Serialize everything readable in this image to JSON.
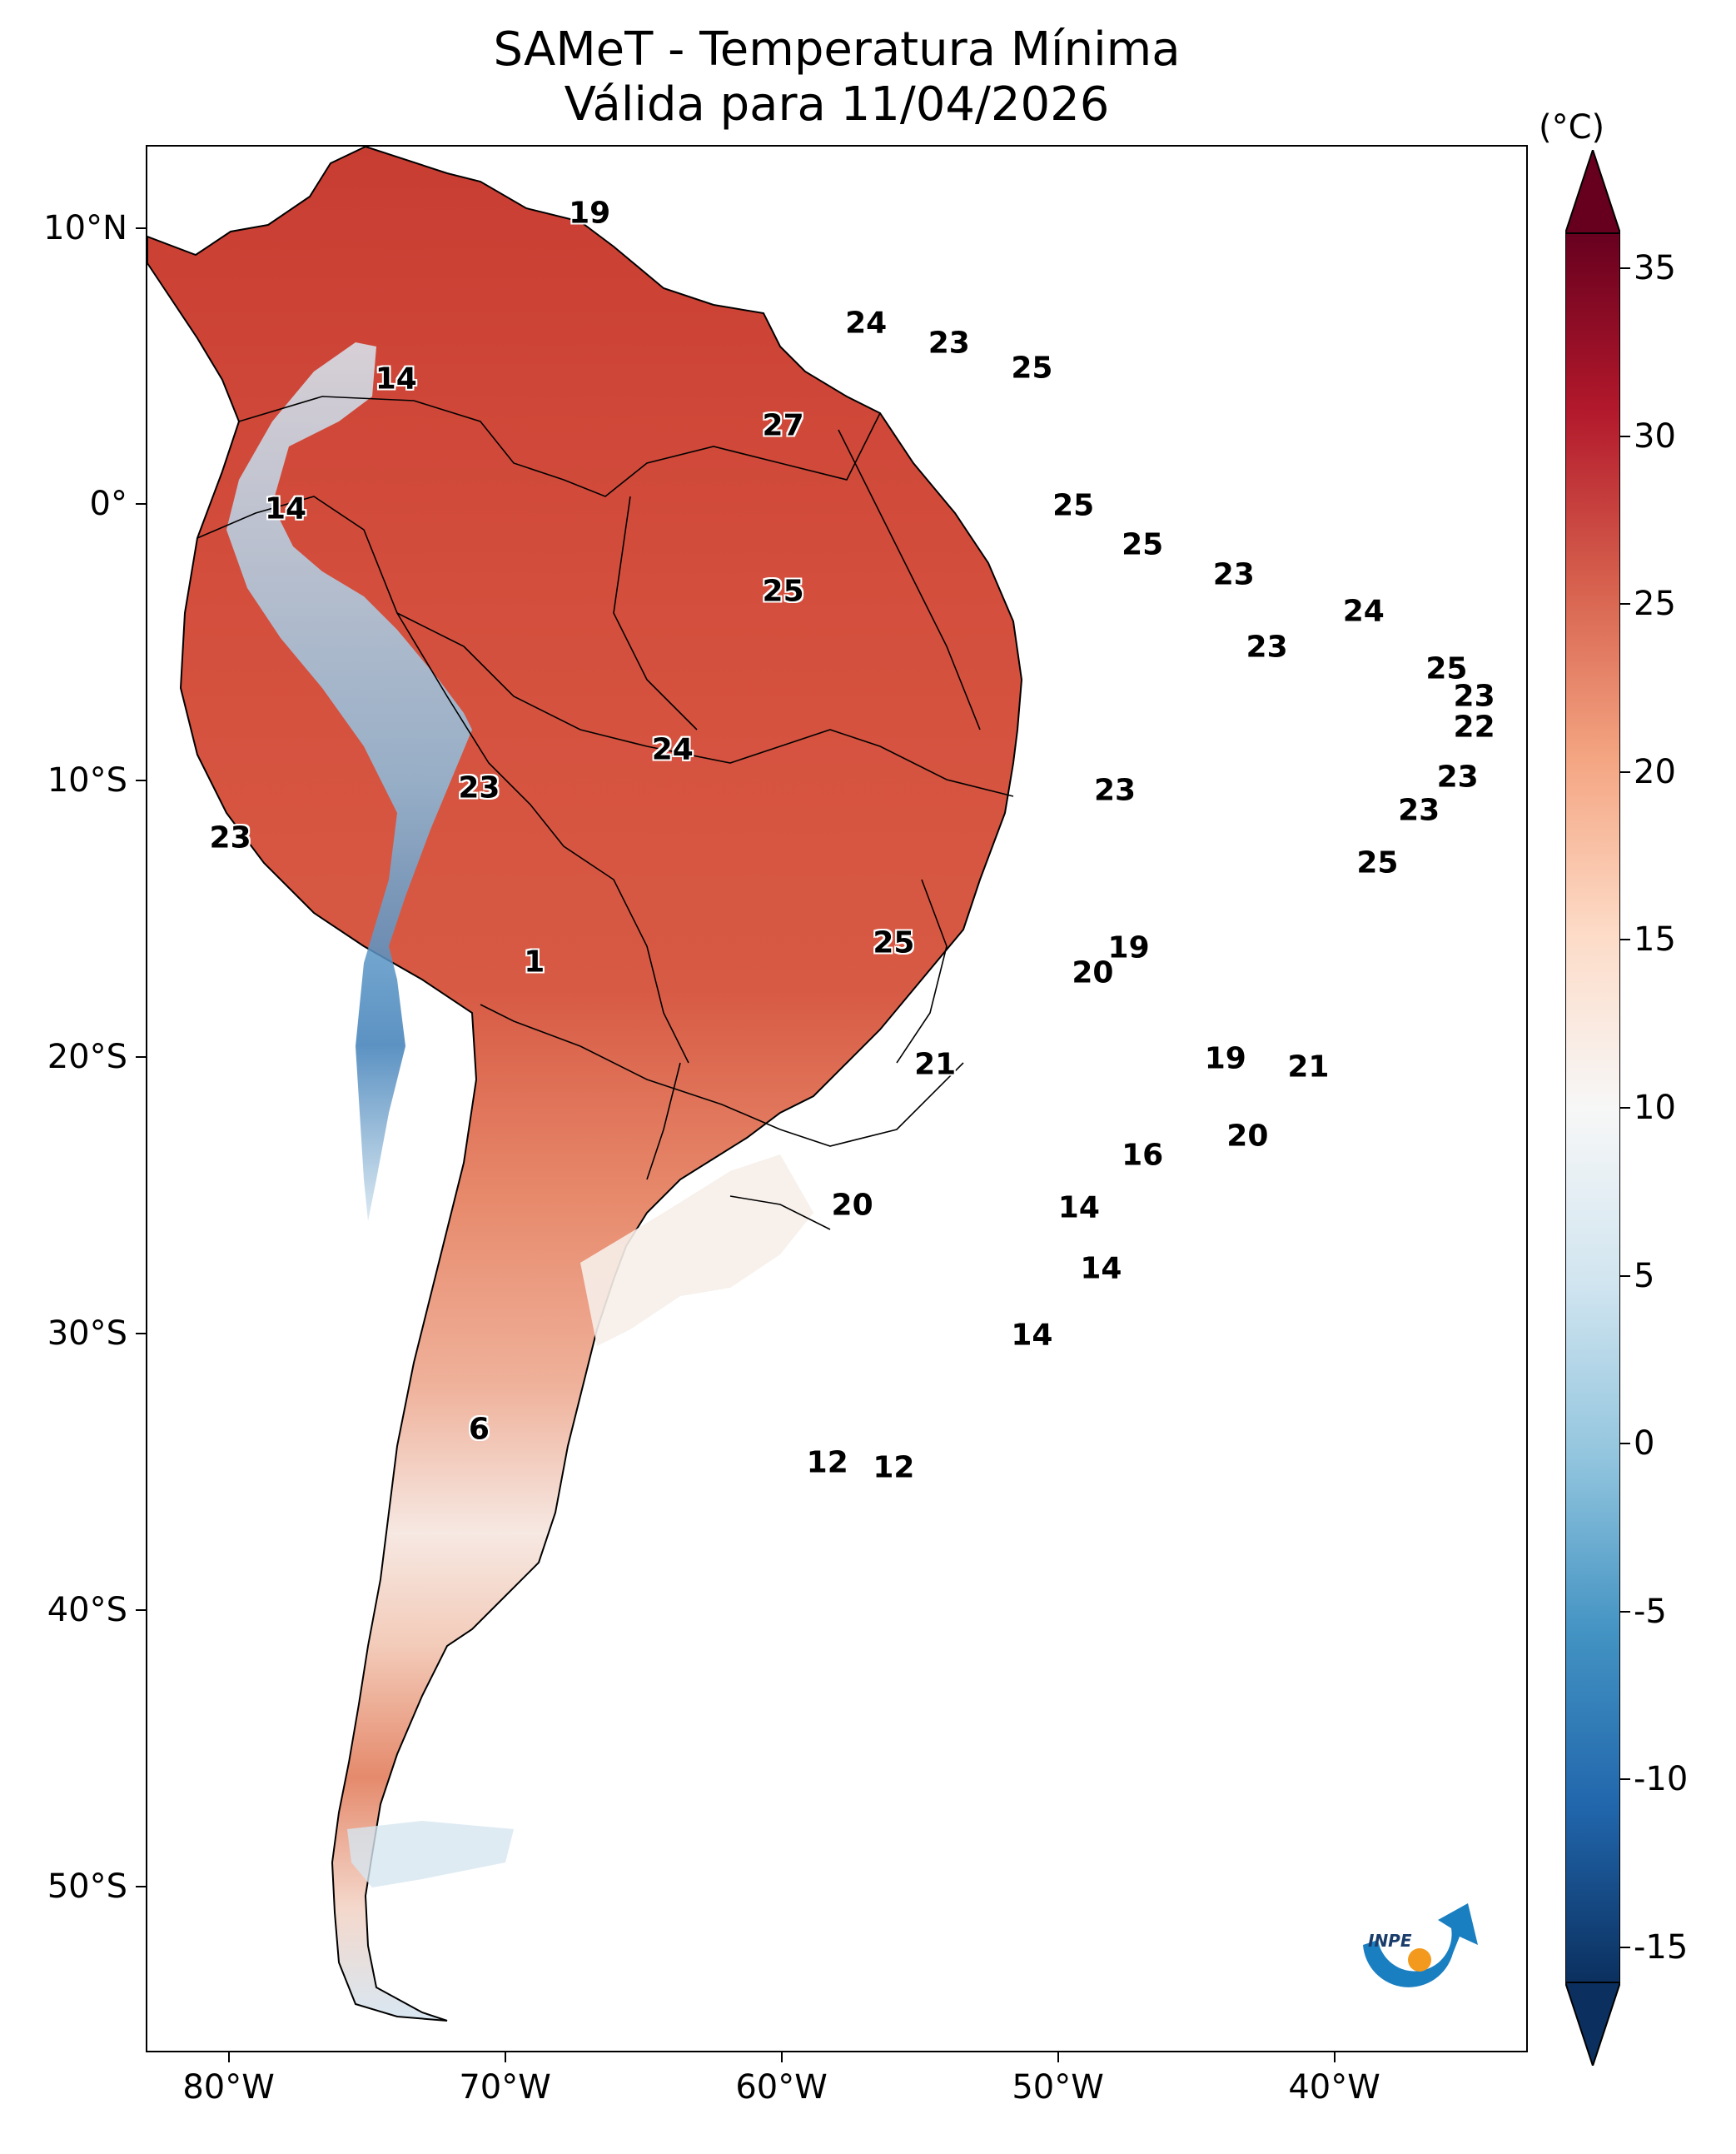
{
  "title": {
    "line1": "SAMeT - Temperatura Mínima",
    "line2": "Válida para 11/04/2026"
  },
  "map": {
    "lat_ticks": [
      "10°N",
      "0°",
      "10°S",
      "20°S",
      "30°S",
      "40°S",
      "50°S"
    ],
    "lon_ticks": [
      "80°W",
      "70°W",
      "60°W",
      "50°W",
      "40°W"
    ],
    "lat_range": [
      -56,
      13
    ],
    "lon_range": [
      -83,
      -33
    ],
    "labels": [
      {
        "lat": 10.6,
        "lon": -67,
        "value": "19"
      },
      {
        "lat": 6.6,
        "lon": -57,
        "value": "24"
      },
      {
        "lat": 5.9,
        "lon": -54,
        "value": "23"
      },
      {
        "lat": 5.0,
        "lon": -51,
        "value": "25"
      },
      {
        "lat": 4.6,
        "lon": -74,
        "value": "14"
      },
      {
        "lat": 2.9,
        "lon": -60,
        "value": "27"
      },
      {
        "lat": -0.1,
        "lon": -78,
        "value": "14"
      },
      {
        "lat": 0.0,
        "lon": -49.5,
        "value": "25"
      },
      {
        "lat": -1.4,
        "lon": -47,
        "value": "25"
      },
      {
        "lat": -2.5,
        "lon": -43.7,
        "value": "23"
      },
      {
        "lat": -3.1,
        "lon": -60,
        "value": "25"
      },
      {
        "lat": -3.8,
        "lon": -39,
        "value": "24"
      },
      {
        "lat": -5.1,
        "lon": -42.5,
        "value": "23"
      },
      {
        "lat": -5.9,
        "lon": -36,
        "value": "25"
      },
      {
        "lat": -6.9,
        "lon": -35,
        "value": "23"
      },
      {
        "lat": -8.0,
        "lon": -35,
        "value": "22"
      },
      {
        "lat": -8.8,
        "lon": -64,
        "value": "24"
      },
      {
        "lat": -9.8,
        "lon": -35.6,
        "value": "23"
      },
      {
        "lat": -10.2,
        "lon": -71,
        "value": "23"
      },
      {
        "lat": -10.3,
        "lon": -48,
        "value": "23"
      },
      {
        "lat": -11.0,
        "lon": -37,
        "value": "23"
      },
      {
        "lat": -12.0,
        "lon": -80,
        "value": "23"
      },
      {
        "lat": -12.9,
        "lon": -38.5,
        "value": "25"
      },
      {
        "lat": -15.8,
        "lon": -56,
        "value": "25"
      },
      {
        "lat": -16.0,
        "lon": -47.5,
        "value": "19"
      },
      {
        "lat": -16.5,
        "lon": -69,
        "value": "1"
      },
      {
        "lat": -16.9,
        "lon": -48.8,
        "value": "20"
      },
      {
        "lat": -20.0,
        "lon": -44,
        "value": "19"
      },
      {
        "lat": -20.2,
        "lon": -54.5,
        "value": "21"
      },
      {
        "lat": -20.3,
        "lon": -41,
        "value": "21"
      },
      {
        "lat": -22.8,
        "lon": -43.2,
        "value": "20"
      },
      {
        "lat": -23.5,
        "lon": -47,
        "value": "16"
      },
      {
        "lat": -25.3,
        "lon": -57.5,
        "value": "20"
      },
      {
        "lat": -25.4,
        "lon": -49.3,
        "value": "14"
      },
      {
        "lat": -27.6,
        "lon": -48.5,
        "value": "14"
      },
      {
        "lat": -30.0,
        "lon": -51,
        "value": "14"
      },
      {
        "lat": -33.4,
        "lon": -71,
        "value": "6"
      },
      {
        "lat": -34.6,
        "lon": -58.4,
        "value": "12"
      },
      {
        "lat": -34.8,
        "lon": -56,
        "value": "12"
      }
    ]
  },
  "colorbar": {
    "unit": "(°C)",
    "ticks": [
      "35",
      "30",
      "25",
      "20",
      "15",
      "10",
      "5",
      "0",
      "-5",
      "-10",
      "-15"
    ],
    "range": [
      -15,
      35
    ],
    "colors": [
      "#0b305f",
      "#2166ac",
      "#4393c3",
      "#92c5de",
      "#d1e5f0",
      "#f7f7f7",
      "#fddbc7",
      "#f4a582",
      "#d6604d",
      "#b2182b",
      "#67001f"
    ]
  },
  "logo": {
    "text": "INPE",
    "arc_color": "#1a7fc1",
    "dot_color": "#f39a1e"
  },
  "colors": {
    "land_warm": "#d4523f",
    "land_hot": "#c13a31",
    "land_mild": "#ee9476",
    "land_cool": "#f7d8cb",
    "andes_cold": "#8fbfdd",
    "andes_colder": "#3f7fb8"
  }
}
